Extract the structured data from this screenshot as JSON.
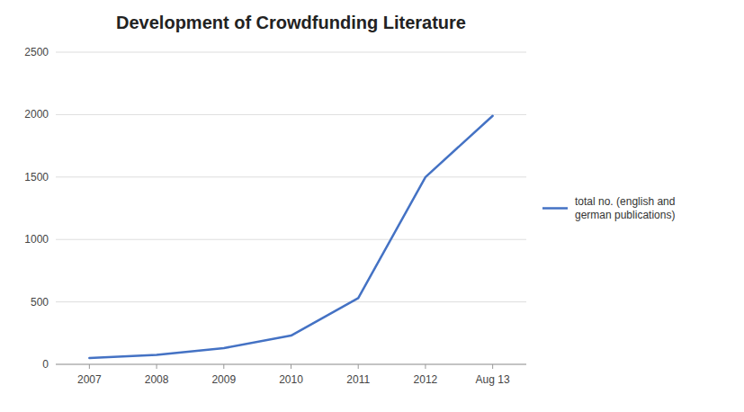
{
  "chart_data": {
    "type": "line",
    "title": "Development of Crowdfunding Literature",
    "categories": [
      "2007",
      "2008",
      "2009",
      "2010",
      "2011",
      "2012",
      "Aug 13"
    ],
    "series": [
      {
        "name": "total no. (english and\ngerman publications)",
        "color": "#4472C4",
        "values": [
          50,
          75,
          130,
          230,
          530,
          1500,
          1990
        ]
      }
    ],
    "ylim": [
      0,
      2500
    ],
    "yticks": [
      0,
      500,
      1000,
      1500,
      2000,
      2500
    ],
    "grid": true,
    "legend": "right"
  }
}
